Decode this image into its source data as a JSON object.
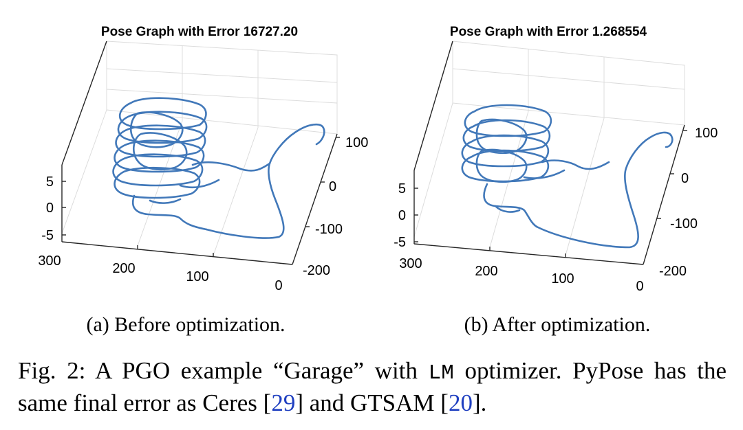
{
  "figure": {
    "panels": [
      {
        "title": "Pose Graph with Error 16727.20",
        "caption": "(a) Before optimization.",
        "z_ticks": [
          "5",
          "0",
          "-5"
        ],
        "x_ticks": [
          "300",
          "200",
          "100",
          "0"
        ],
        "y_ticks": [
          "100",
          "0",
          "-100",
          "-200"
        ]
      },
      {
        "title": "Pose Graph with Error 1.268554",
        "caption": "(b) After optimization.",
        "z_ticks": [
          "5",
          "0",
          "-5"
        ],
        "x_ticks": [
          "300",
          "200",
          "100",
          "0"
        ],
        "y_ticks": [
          "100",
          "0",
          "-100",
          "-200"
        ]
      }
    ],
    "caption": {
      "prefix": "Fig. 2: A PGO example “Garage” with ",
      "code": "LM",
      "middle": " optimizer. PyPose has the same final error as Ceres [",
      "ref1": "29",
      "and": "] and GTSAM [",
      "ref2": "20",
      "end": "]."
    }
  },
  "colors": {
    "trajectory": "#4178b9",
    "citation": "#1f3fc0"
  }
}
